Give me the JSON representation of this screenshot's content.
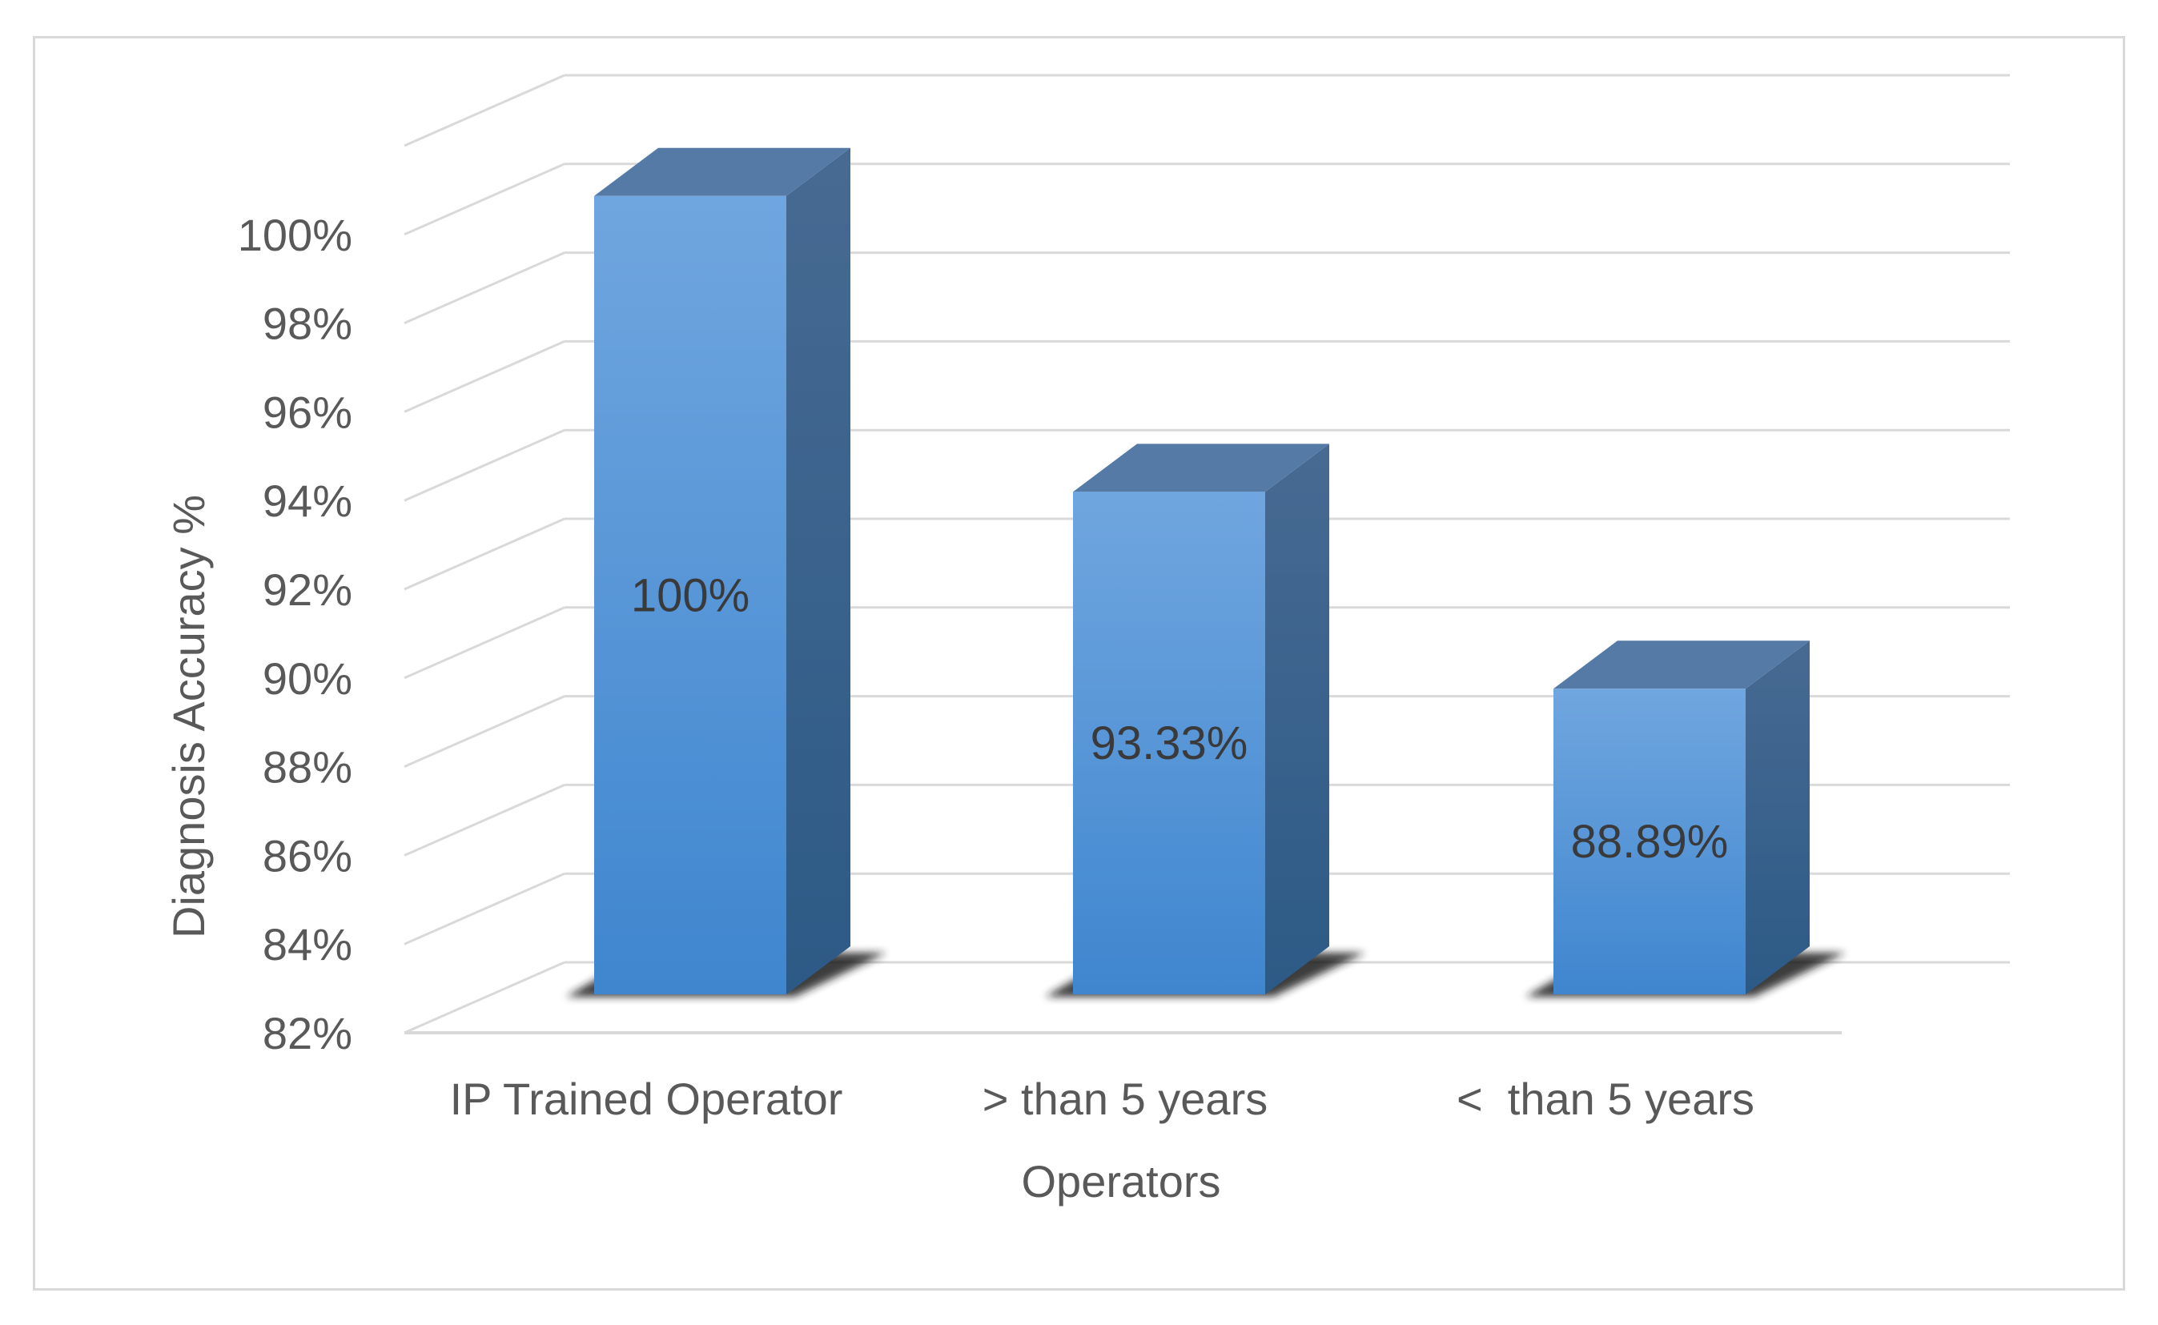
{
  "chart_data": {
    "type": "bar",
    "title": "",
    "xlabel": "Operators",
    "ylabel": "Diagnosis Accuracy %",
    "categories": [
      "IP Trained Operator",
      "> than 5 years",
      "<  than 5 years"
    ],
    "values": [
      100,
      93.33,
      88.89
    ],
    "data_labels": [
      "100%",
      "93.33%",
      "88.89%"
    ],
    "ylim": [
      82,
      100
    ],
    "yticks": [
      82,
      84,
      86,
      88,
      90,
      92,
      94,
      96,
      98,
      100
    ],
    "ytick_labels": [
      "82%",
      "84%",
      "86%",
      "88%",
      "90%",
      "92%",
      "94%",
      "96%",
      "98%",
      "100%"
    ],
    "grid": true,
    "style": "3d-column",
    "colors": {
      "bar_front_top": "#70a6df",
      "bar_front_bottom": "#3f86cf",
      "bar_side_top": "#476a92",
      "bar_side_bottom": "#2c5a86",
      "bar_top": "#557aa6",
      "gridline": "#d9d9d9",
      "text": "#595959"
    }
  }
}
